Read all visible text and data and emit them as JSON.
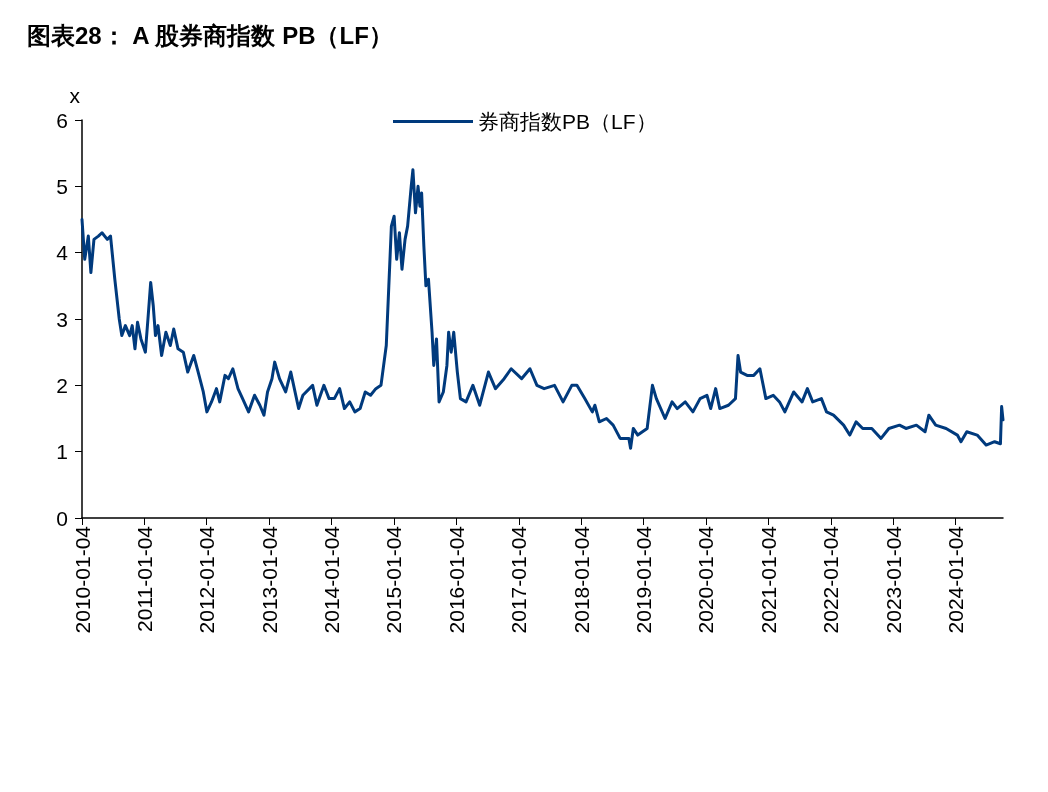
{
  "chart_data": {
    "type": "line",
    "title": "图表28： A 股券商指数 PB（LF）",
    "ylabel": "x",
    "xlim": [
      "2010-01-04",
      "2024-10-08"
    ],
    "xticks": [
      "2010-01-04",
      "2011-01-04",
      "2012-01-04",
      "2013-01-04",
      "2014-01-04",
      "2015-01-04",
      "2016-01-04",
      "2017-01-04",
      "2018-01-04",
      "2019-01-04",
      "2020-01-04",
      "2021-01-04",
      "2022-01-04",
      "2023-01-04",
      "2024-01-04"
    ],
    "ylim": [
      0,
      6
    ],
    "yticks": [
      0,
      1,
      2,
      3,
      4,
      5,
      6
    ],
    "grid": false,
    "legend": "top",
    "marker": "none",
    "line_style": "solid",
    "series": [
      {
        "name": "券商指数PB（LF）",
        "color": "#003a7d",
        "x": [
          "2010-01-04",
          "2010-01-20",
          "2010-02-10",
          "2010-02-25",
          "2010-03-15",
          "2010-04-10",
          "2010-05-01",
          "2010-06-01",
          "2010-06-20",
          "2010-07-15",
          "2010-08-10",
          "2010-08-25",
          "2010-09-15",
          "2010-10-10",
          "2010-10-25",
          "2010-11-10",
          "2010-11-25",
          "2010-12-15",
          "2011-01-10",
          "2011-01-25",
          "2011-02-10",
          "2011-02-25",
          "2011-03-10",
          "2011-03-25",
          "2011-04-15",
          "2011-05-10",
          "2011-06-05",
          "2011-06-25",
          "2011-07-20",
          "2011-08-20",
          "2011-09-15",
          "2011-10-20",
          "2011-11-15",
          "2011-12-15",
          "2012-01-05",
          "2012-02-01",
          "2012-03-01",
          "2012-03-20",
          "2012-04-20",
          "2012-05-10",
          "2012-06-05",
          "2012-07-05",
          "2012-08-01",
          "2012-09-05",
          "2012-10-10",
          "2012-11-10",
          "2012-12-04",
          "2012-12-25",
          "2013-01-20",
          "2013-02-05",
          "2013-03-05",
          "2013-04-10",
          "2013-05-10",
          "2013-06-25",
          "2013-07-20",
          "2013-09-15",
          "2013-10-10",
          "2013-11-20",
          "2013-12-20",
          "2014-01-20",
          "2014-02-20",
          "2014-03-20",
          "2014-04-20",
          "2014-05-20",
          "2014-06-20",
          "2014-07-20",
          "2014-08-20",
          "2014-09-20",
          "2014-10-20",
          "2014-11-20",
          "2014-12-05",
          "2014-12-20",
          "2015-01-05",
          "2015-01-20",
          "2015-02-05",
          "2015-02-20",
          "2015-03-10",
          "2015-03-25",
          "2015-04-15",
          "2015-04-25",
          "2015-05-10",
          "2015-05-25",
          "2015-06-05",
          "2015-06-15",
          "2015-06-28",
          "2015-07-10",
          "2015-07-25",
          "2015-08-15",
          "2015-08-25",
          "2015-09-10",
          "2015-09-25",
          "2015-10-20",
          "2015-11-10",
          "2015-11-20",
          "2015-12-05",
          "2015-12-20",
          "2016-01-10",
          "2016-01-28",
          "2016-03-01",
          "2016-04-10",
          "2016-05-20",
          "2016-07-10",
          "2016-08-20",
          "2016-10-10",
          "2016-11-20",
          "2017-01-20",
          "2017-03-10",
          "2017-04-20",
          "2017-06-01",
          "2017-08-01",
          "2017-09-20",
          "2017-11-10",
          "2017-12-10",
          "2018-01-25",
          "2018-03-10",
          "2018-03-25",
          "2018-04-20",
          "2018-06-01",
          "2018-07-10",
          "2018-08-20",
          "2018-10-10",
          "2018-10-20",
          "2018-11-05",
          "2018-12-01",
          "2019-01-25",
          "2019-02-25",
          "2019-03-20",
          "2019-05-10",
          "2019-06-20",
          "2019-07-20",
          "2019-09-05",
          "2019-10-20",
          "2019-12-01",
          "2020-01-10",
          "2020-02-01",
          "2020-03-01",
          "2020-03-25",
          "2020-05-15",
          "2020-06-25",
          "2020-07-10",
          "2020-07-25",
          "2020-09-01",
          "2020-10-10",
          "2020-11-15",
          "2020-12-20",
          "2021-02-01",
          "2021-03-10",
          "2021-04-10",
          "2021-06-01",
          "2021-07-20",
          "2021-08-20",
          "2021-09-20",
          "2021-11-10",
          "2021-12-10",
          "2022-01-20",
          "2022-03-20",
          "2022-04-25",
          "2022-06-01",
          "2022-07-10",
          "2022-09-01",
          "2022-10-25",
          "2022-12-10",
          "2023-02-10",
          "2023-03-20",
          "2023-05-20",
          "2023-07-10",
          "2023-08-01",
          "2023-09-10",
          "2023-11-10",
          "2024-01-15",
          "2024-02-05",
          "2024-03-10",
          "2024-05-10",
          "2024-07-01",
          "2024-08-20",
          "2024-09-23",
          "2024-09-30",
          "2024-10-08"
        ],
        "values": [
          4.5,
          3.9,
          4.25,
          3.7,
          4.2,
          4.25,
          4.3,
          4.2,
          4.25,
          3.6,
          3.0,
          2.75,
          2.9,
          2.75,
          2.9,
          2.55,
          2.95,
          2.7,
          2.5,
          3.0,
          3.55,
          3.2,
          2.75,
          2.9,
          2.45,
          2.8,
          2.6,
          2.85,
          2.55,
          2.5,
          2.2,
          2.45,
          2.2,
          1.9,
          1.6,
          1.75,
          1.95,
          1.75,
          2.15,
          2.1,
          2.25,
          1.95,
          1.8,
          1.6,
          1.85,
          1.7,
          1.55,
          1.9,
          2.1,
          2.35,
          2.1,
          1.9,
          2.2,
          1.65,
          1.85,
          2.0,
          1.7,
          2.0,
          1.8,
          1.8,
          1.95,
          1.65,
          1.75,
          1.6,
          1.65,
          1.9,
          1.85,
          1.95,
          2.0,
          2.6,
          3.5,
          4.4,
          4.55,
          3.9,
          4.3,
          3.75,
          4.2,
          4.4,
          5.0,
          5.25,
          4.6,
          5.0,
          4.7,
          4.9,
          4.1,
          3.5,
          3.6,
          2.8,
          2.3,
          2.7,
          1.75,
          1.9,
          2.3,
          2.8,
          2.5,
          2.8,
          2.2,
          1.8,
          1.75,
          2.0,
          1.7,
          2.2,
          1.95,
          2.1,
          2.25,
          2.1,
          2.25,
          2.0,
          1.95,
          2.0,
          1.75,
          2.0,
          2.0,
          1.8,
          1.6,
          1.7,
          1.45,
          1.5,
          1.4,
          1.2,
          1.2,
          1.05,
          1.35,
          1.25,
          1.35,
          2.0,
          1.8,
          1.5,
          1.75,
          1.65,
          1.75,
          1.6,
          1.8,
          1.85,
          1.65,
          1.95,
          1.65,
          1.7,
          1.8,
          2.45,
          2.2,
          2.15,
          2.15,
          2.25,
          1.8,
          1.85,
          1.75,
          1.6,
          1.9,
          1.75,
          1.95,
          1.75,
          1.8,
          1.6,
          1.55,
          1.4,
          1.25,
          1.45,
          1.35,
          1.35,
          1.2,
          1.35,
          1.4,
          1.35,
          1.4,
          1.3,
          1.55,
          1.4,
          1.35,
          1.25,
          1.15,
          1.3,
          1.25,
          1.1,
          1.15,
          1.12,
          1.68,
          1.48
        ]
      }
    ]
  }
}
